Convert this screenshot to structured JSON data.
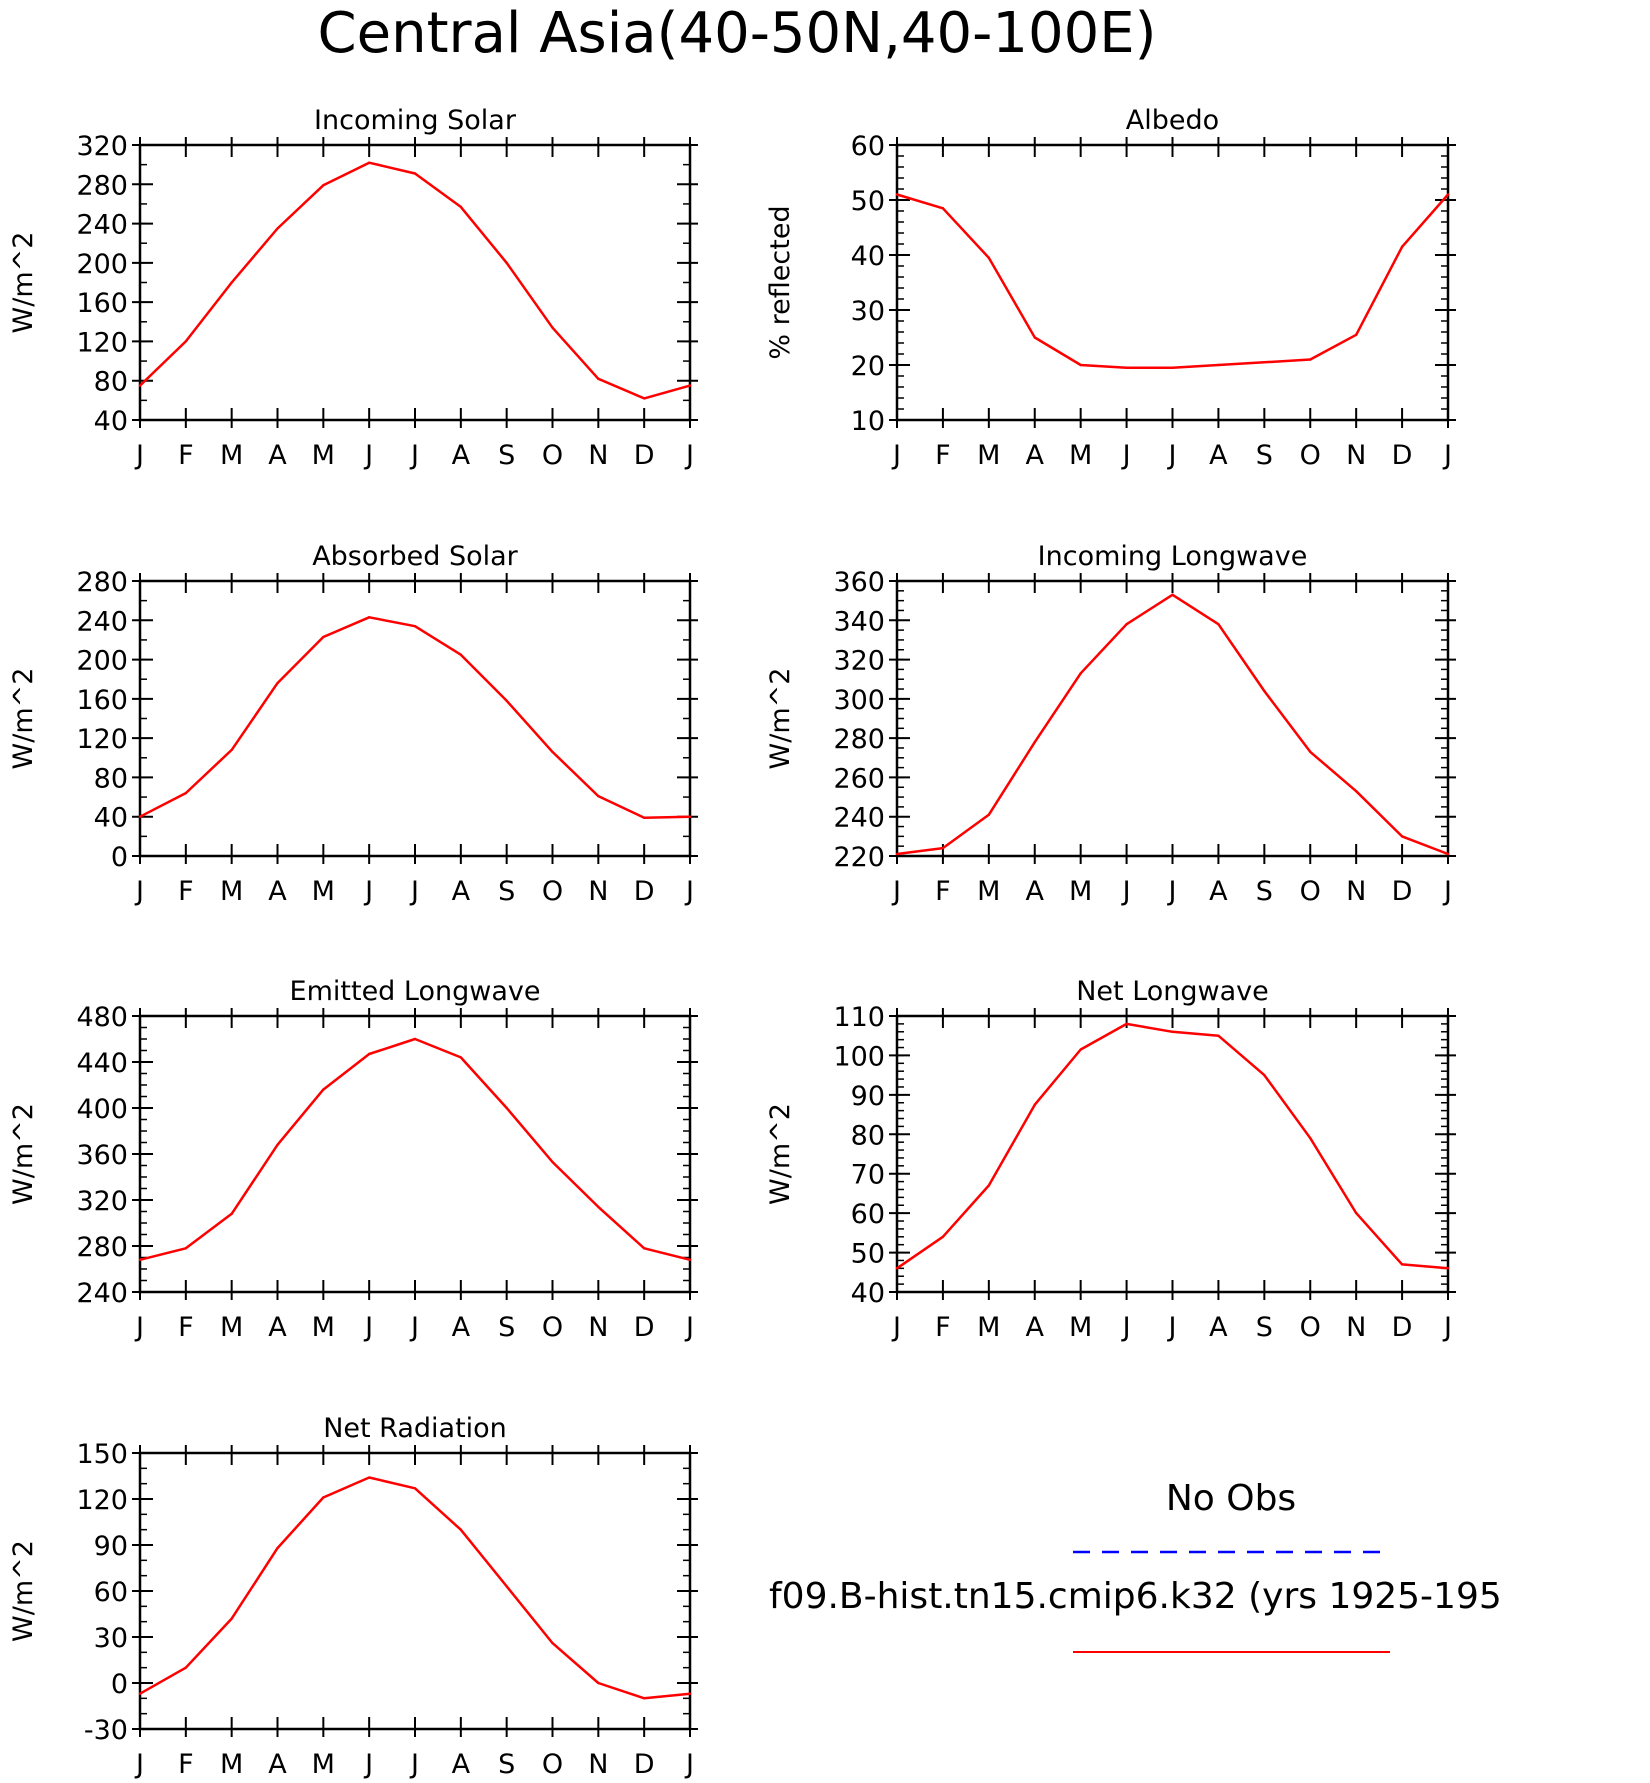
{
  "figure_title": "Central Asia(40-50N,40-100E)",
  "colors": {
    "model_line": "#ff0000",
    "obs_line": "#0000ff",
    "axis": "#000000"
  },
  "legend": {
    "obs_label": "No Obs",
    "model_label": "f09.B-hist.tn15.cmip6.k32 (yrs 1925-195"
  },
  "chart_data": [
    {
      "type": "line",
      "title": "Incoming Solar",
      "xlabel": "",
      "ylabel": "W/m^2",
      "categories": [
        "J",
        "F",
        "M",
        "A",
        "M",
        "J",
        "J",
        "A",
        "S",
        "O",
        "N",
        "D",
        "J"
      ],
      "ylim": [
        40,
        320
      ],
      "yticks": [
        40,
        80,
        120,
        160,
        200,
        240,
        280,
        320
      ],
      "yminor": 20,
      "series": [
        {
          "values": [
            75,
            120,
            180,
            235,
            279,
            302,
            291,
            257,
            200,
            134,
            82,
            62,
            75
          ]
        }
      ]
    },
    {
      "type": "line",
      "title": "Albedo",
      "xlabel": "",
      "ylabel": "% reflected",
      "categories": [
        "J",
        "F",
        "M",
        "A",
        "M",
        "J",
        "J",
        "A",
        "S",
        "O",
        "N",
        "D",
        "J"
      ],
      "ylim": [
        10,
        60
      ],
      "yticks": [
        10,
        20,
        30,
        40,
        50,
        60
      ],
      "yminor": 2,
      "series": [
        {
          "values": [
            51,
            48.5,
            39.5,
            25,
            20,
            19.5,
            19.5,
            20,
            20.5,
            21,
            25.5,
            41.5,
            51
          ]
        }
      ]
    },
    {
      "type": "line",
      "title": "Absorbed Solar",
      "xlabel": "",
      "ylabel": "W/m^2",
      "categories": [
        "J",
        "F",
        "M",
        "A",
        "M",
        "J",
        "J",
        "A",
        "S",
        "O",
        "N",
        "D",
        "J"
      ],
      "ylim": [
        0,
        280
      ],
      "yticks": [
        0,
        40,
        80,
        120,
        160,
        200,
        240,
        280
      ],
      "yminor": 20,
      "series": [
        {
          "values": [
            40,
            64,
            108,
            176,
            223,
            243,
            234,
            205,
            158,
            106,
            61,
            39,
            40
          ]
        }
      ]
    },
    {
      "type": "line",
      "title": "Incoming Longwave",
      "xlabel": "",
      "ylabel": "W/m^2",
      "categories": [
        "J",
        "F",
        "M",
        "A",
        "M",
        "J",
        "J",
        "A",
        "S",
        "O",
        "N",
        "D",
        "J"
      ],
      "ylim": [
        220,
        360
      ],
      "yticks": [
        220,
        240,
        260,
        280,
        300,
        320,
        340,
        360
      ],
      "yminor": 5,
      "series": [
        {
          "values": [
            221,
            224,
            241,
            278,
            313,
            338,
            353,
            338,
            304,
            273,
            253,
            230,
            221
          ]
        }
      ]
    },
    {
      "type": "line",
      "title": "Emitted Longwave",
      "xlabel": "",
      "ylabel": "W/m^2",
      "categories": [
        "J",
        "F",
        "M",
        "A",
        "M",
        "J",
        "J",
        "A",
        "S",
        "O",
        "N",
        "D",
        "J"
      ],
      "ylim": [
        240,
        480
      ],
      "yticks": [
        240,
        280,
        320,
        360,
        400,
        440,
        480
      ],
      "yminor": 10,
      "series": [
        {
          "values": [
            268,
            278,
            308,
            368,
            416,
            447,
            460,
            444,
            400,
            353,
            314,
            278,
            268
          ]
        }
      ]
    },
    {
      "type": "line",
      "title": "Net Longwave",
      "xlabel": "",
      "ylabel": "W/m^2",
      "categories": [
        "J",
        "F",
        "M",
        "A",
        "M",
        "J",
        "J",
        "A",
        "S",
        "O",
        "N",
        "D",
        "J"
      ],
      "ylim": [
        40,
        110
      ],
      "yticks": [
        40,
        50,
        60,
        70,
        80,
        90,
        100,
        110
      ],
      "yminor": 2,
      "series": [
        {
          "values": [
            46,
            54,
            67,
            87.5,
            101.5,
            108,
            106,
            105,
            95,
            79,
            60,
            47,
            46
          ]
        }
      ]
    },
    {
      "type": "line",
      "title": "Net Radiation",
      "xlabel": "",
      "ylabel": "W/m^2",
      "categories": [
        "J",
        "F",
        "M",
        "A",
        "M",
        "J",
        "J",
        "A",
        "S",
        "O",
        "N",
        "D",
        "J"
      ],
      "ylim": [
        -30,
        150
      ],
      "yticks": [
        -30,
        0,
        30,
        60,
        90,
        120,
        150
      ],
      "yminor": 10,
      "series": [
        {
          "values": [
            -7,
            10,
            42,
            88,
            121,
            134,
            127,
            100,
            63,
            26,
            0,
            -10,
            -7
          ]
        }
      ]
    }
  ]
}
